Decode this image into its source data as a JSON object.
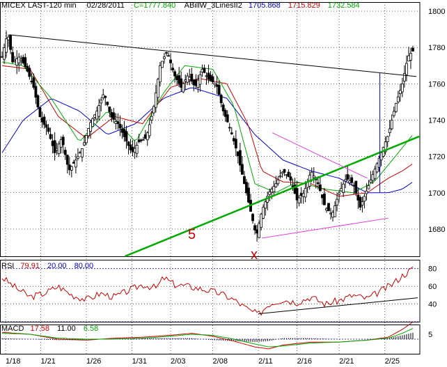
{
  "header": {
    "symbol": "MICEX LAST-120 min",
    "date": "02/28/2011",
    "close_label": "C=1777.840",
    "indicator_name": "ABillW_3LinesII2",
    "ind_values": [
      {
        "text": "1705.868",
        "color": "#0000cc"
      },
      {
        "text": "1715.829",
        "color": "#cc0000"
      },
      {
        "text": "1732.584",
        "color": "#00aa00"
      }
    ]
  },
  "rsi_header": {
    "name": "RSI",
    "values": [
      {
        "text": "79.91",
        "color": "#cc0000"
      },
      {
        "text": "20.00",
        "color": "#0000cc"
      },
      {
        "text": "80.00",
        "color": "#0000cc"
      }
    ]
  },
  "macd_header": {
    "name": "MACD",
    "values": [
      {
        "text": "17.58",
        "color": "#cc0000"
      },
      {
        "text": "11.00",
        "color": "#000000"
      },
      {
        "text": "6.58",
        "color": "#00aa00"
      }
    ]
  },
  "annotations": {
    "wave5": "5",
    "wavex": "x"
  },
  "colors": {
    "candles": "#000000",
    "ma_red": "#cc0000",
    "ma_green": "#00aa00",
    "ma_blue": "#0000cc",
    "trend_green": "#1a8a1a",
    "triangle": "#dd44dd",
    "grid": "#000000"
  },
  "chart_data": [
    {
      "type": "candlestick",
      "title": "MICEX LAST-120 min",
      "ylim": [
        1665,
        1805
      ],
      "xlim": [
        0,
        587
      ],
      "y_ticks": [
        1680,
        1700,
        1720,
        1740,
        1760,
        1780,
        1800
      ],
      "x_ticks": [
        {
          "x": 5,
          "label": "1/18"
        },
        {
          "x": 55,
          "label": "1/21"
        },
        {
          "x": 120,
          "label": "1/26"
        },
        {
          "x": 185,
          "label": "1/31"
        },
        {
          "x": 240,
          "label": "2/03"
        },
        {
          "x": 300,
          "label": "2/08"
        },
        {
          "x": 365,
          "label": "2/11"
        },
        {
          "x": 420,
          "label": "2/16"
        },
        {
          "x": 480,
          "label": "2/21"
        },
        {
          "x": 545,
          "label": "2/25"
        }
      ],
      "grid": true,
      "price_anchors": [
        [
          0,
          1775
        ],
        [
          8,
          1788
        ],
        [
          15,
          1772
        ],
        [
          25,
          1775
        ],
        [
          35,
          1768
        ],
        [
          45,
          1758
        ],
        [
          55,
          1740
        ],
        [
          65,
          1735
        ],
        [
          75,
          1722
        ],
        [
          85,
          1730
        ],
        [
          95,
          1712
        ],
        [
          105,
          1718
        ],
        [
          115,
          1725
        ],
        [
          125,
          1738
        ],
        [
          135,
          1745
        ],
        [
          145,
          1755
        ],
        [
          155,
          1742
        ],
        [
          165,
          1738
        ],
        [
          175,
          1730
        ],
        [
          185,
          1722
        ],
        [
          195,
          1728
        ],
        [
          205,
          1730
        ],
        [
          215,
          1745
        ],
        [
          225,
          1770
        ],
        [
          235,
          1778
        ],
        [
          245,
          1765
        ],
        [
          255,
          1758
        ],
        [
          265,
          1765
        ],
        [
          275,
          1758
        ],
        [
          285,
          1768
        ],
        [
          295,
          1762
        ],
        [
          305,
          1760
        ],
        [
          315,
          1745
        ],
        [
          325,
          1735
        ],
        [
          335,
          1722
        ],
        [
          345,
          1705
        ],
        [
          355,
          1688
        ],
        [
          362,
          1676
        ],
        [
          370,
          1690
        ],
        [
          380,
          1700
        ],
        [
          390,
          1705
        ],
        [
          400,
          1712
        ],
        [
          410,
          1708
        ],
        [
          420,
          1696
        ],
        [
          430,
          1700
        ],
        [
          440,
          1712
        ],
        [
          450,
          1705
        ],
        [
          460,
          1692
        ],
        [
          470,
          1688
        ],
        [
          480,
          1700
        ],
        [
          490,
          1708
        ],
        [
          500,
          1705
        ],
        [
          510,
          1692
        ],
        [
          520,
          1702
        ],
        [
          530,
          1712
        ],
        [
          540,
          1722
        ],
        [
          550,
          1732
        ],
        [
          560,
          1748
        ],
        [
          570,
          1760
        ],
        [
          578,
          1775
        ],
        [
          585,
          1778
        ]
      ],
      "series_anchors": {
        "red": [
          [
            0,
            1770
          ],
          [
            40,
            1768
          ],
          [
            80,
            1742
          ],
          [
            120,
            1730
          ],
          [
            160,
            1742
          ],
          [
            200,
            1738
          ],
          [
            240,
            1758
          ],
          [
            280,
            1763
          ],
          [
            320,
            1760
          ],
          [
            350,
            1738
          ],
          [
            370,
            1712
          ],
          [
            400,
            1706
          ],
          [
            440,
            1705
          ],
          [
            480,
            1698
          ],
          [
            520,
            1700
          ],
          [
            550,
            1708
          ],
          [
            570,
            1712
          ],
          [
            585,
            1716
          ]
        ],
        "green": [
          [
            0,
            1772
          ],
          [
            30,
            1770
          ],
          [
            70,
            1752
          ],
          [
            110,
            1728
          ],
          [
            150,
            1745
          ],
          [
            190,
            1728
          ],
          [
            230,
            1755
          ],
          [
            260,
            1770
          ],
          [
            300,
            1768
          ],
          [
            330,
            1748
          ],
          [
            360,
            1705
          ],
          [
            390,
            1700
          ],
          [
            420,
            1706
          ],
          [
            460,
            1702
          ],
          [
            500,
            1700
          ],
          [
            530,
            1706
          ],
          [
            560,
            1720
          ],
          [
            585,
            1732
          ]
        ],
        "blue": [
          [
            0,
            1722
          ],
          [
            30,
            1740
          ],
          [
            70,
            1752
          ],
          [
            110,
            1745
          ],
          [
            150,
            1732
          ],
          [
            190,
            1738
          ],
          [
            230,
            1752
          ],
          [
            270,
            1758
          ],
          [
            320,
            1752
          ],
          [
            360,
            1732
          ],
          [
            400,
            1718
          ],
          [
            440,
            1712
          ],
          [
            480,
            1708
          ],
          [
            520,
            1700
          ],
          [
            550,
            1700
          ],
          [
            570,
            1702
          ],
          [
            585,
            1706
          ]
        ]
      },
      "trendlines": [
        {
          "name": "resistance",
          "color": "black",
          "points": [
            [
              10,
              1787
            ],
            [
              590,
              1764
            ]
          ]
        },
        {
          "name": "support-5",
          "color": "green",
          "points": [
            [
              175,
              1665
            ],
            [
              594,
              1731
            ]
          ]
        },
        {
          "name": "triangle-upper",
          "color": "magenta",
          "points": [
            [
              385,
              1733
            ],
            [
              520,
              1708
            ]
          ]
        },
        {
          "name": "triangle-lower",
          "color": "magenta",
          "points": [
            [
              370,
              1675
            ],
            [
              550,
              1686
            ]
          ]
        },
        {
          "name": "breakout-marker",
          "color": "blue",
          "points": [
            [
              538,
              1766
            ],
            [
              538,
              1700
            ]
          ]
        }
      ]
    },
    {
      "type": "line",
      "title": "RSI",
      "ylim": [
        20,
        90
      ],
      "y_ticks": [
        40,
        60,
        80
      ],
      "levels": [
        20,
        80
      ],
      "series": [
        {
          "name": "RSI",
          "color": "red",
          "anchors": [
            [
              0,
              70
            ],
            [
              20,
              58
            ],
            [
              40,
              48
            ],
            [
              60,
              52
            ],
            [
              80,
              60
            ],
            [
              100,
              50
            ],
            [
              120,
              45
            ],
            [
              140,
              52
            ],
            [
              160,
              48
            ],
            [
              180,
              55
            ],
            [
              200,
              62
            ],
            [
              220,
              58
            ],
            [
              230,
              70
            ],
            [
              245,
              62
            ],
            [
              265,
              60
            ],
            [
              290,
              56
            ],
            [
              310,
              52
            ],
            [
              330,
              45
            ],
            [
              350,
              34
            ],
            [
              365,
              28
            ],
            [
              380,
              40
            ],
            [
              400,
              45
            ],
            [
              420,
              42
            ],
            [
              440,
              48
            ],
            [
              460,
              40
            ],
            [
              480,
              44
            ],
            [
              500,
              50
            ],
            [
              520,
              46
            ],
            [
              540,
              55
            ],
            [
              555,
              62
            ],
            [
              570,
              72
            ],
            [
              585,
              80
            ]
          ]
        }
      ],
      "trendlines": [
        {
          "name": "rsi-support",
          "color": "black",
          "points": [
            [
              365,
              29
            ],
            [
              592,
              47
            ]
          ]
        }
      ]
    },
    {
      "type": "line",
      "title": "MACD",
      "ylim": [
        -15,
        15
      ],
      "y_ticks": [
        5
      ],
      "series": [
        {
          "name": "MACD",
          "color": "red",
          "anchors": [
            [
              0,
              7
            ],
            [
              40,
              5
            ],
            [
              80,
              0
            ],
            [
              120,
              -1
            ],
            [
              160,
              1
            ],
            [
              200,
              2
            ],
            [
              240,
              4
            ],
            [
              270,
              6
            ],
            [
              300,
              3
            ],
            [
              330,
              -2
            ],
            [
              360,
              -8
            ],
            [
              380,
              -10
            ],
            [
              400,
              -6
            ],
            [
              440,
              -3
            ],
            [
              480,
              -3
            ],
            [
              520,
              -1
            ],
            [
              550,
              2
            ],
            [
              570,
              10
            ],
            [
              585,
              17.58
            ]
          ]
        },
        {
          "name": "Signal",
          "color": "green",
          "anchors": [
            [
              0,
              6
            ],
            [
              40,
              5
            ],
            [
              80,
              1
            ],
            [
              120,
              0
            ],
            [
              160,
              0
            ],
            [
              200,
              1
            ],
            [
              240,
              3
            ],
            [
              270,
              5
            ],
            [
              300,
              4
            ],
            [
              330,
              0
            ],
            [
              360,
              -5
            ],
            [
              380,
              -8
            ],
            [
              400,
              -7
            ],
            [
              440,
              -4
            ],
            [
              480,
              -3
            ],
            [
              520,
              -1
            ],
            [
              550,
              1
            ],
            [
              570,
              6
            ],
            [
              585,
              11
            ]
          ]
        }
      ]
    }
  ]
}
